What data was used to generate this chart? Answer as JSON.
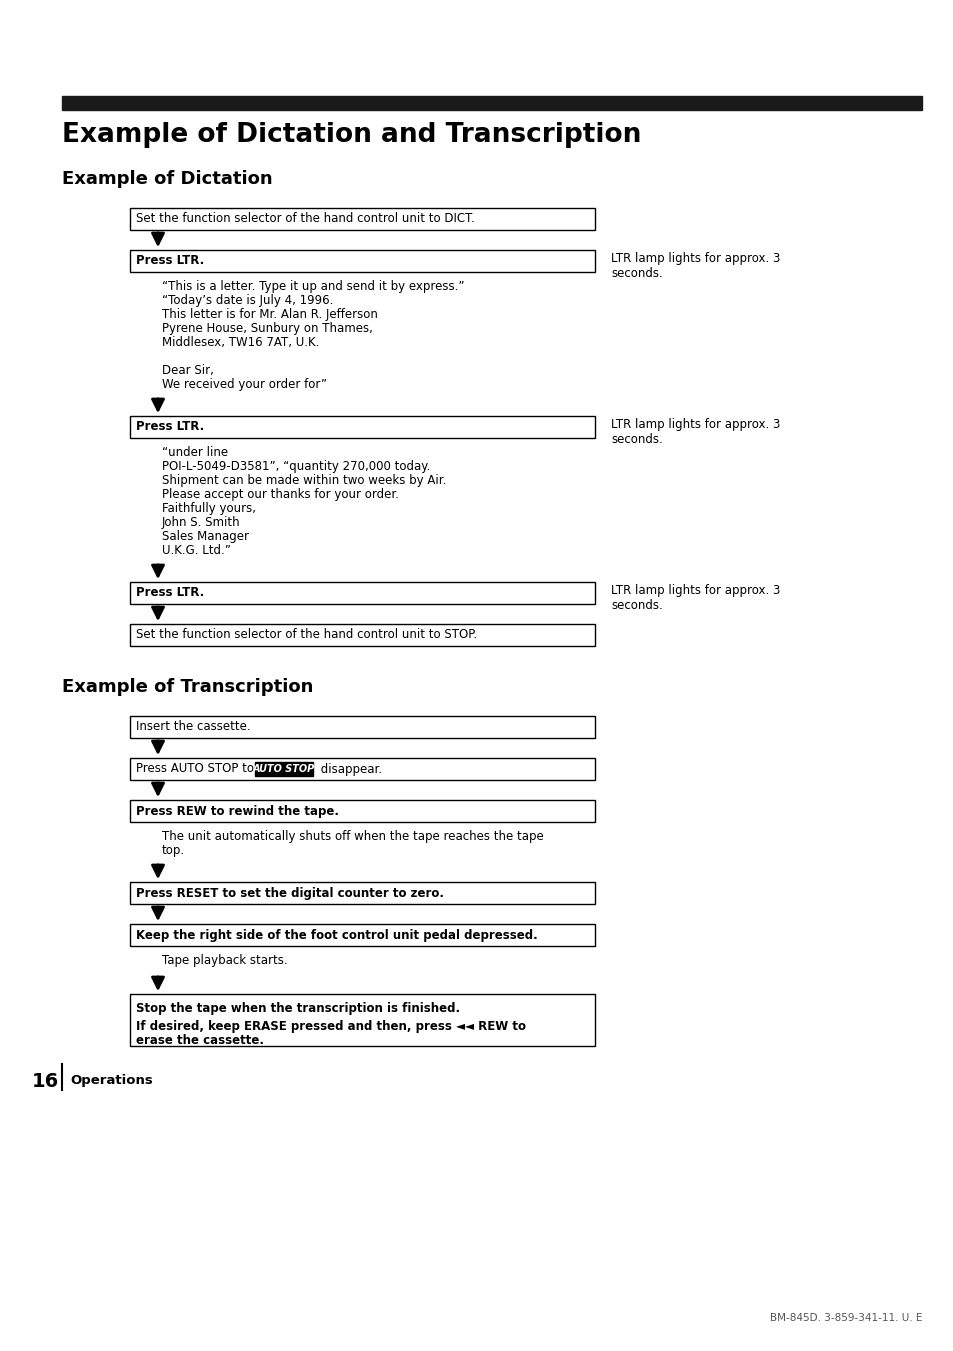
{
  "title": "Example of Dictation and Transcription",
  "subtitle1": "Example of Dictation",
  "subtitle2": "Example of Transcription",
  "bg_color": "#ffffff",
  "header_bar_color": "#1a1a1a",
  "page_num": "16",
  "page_label": "Operations",
  "footer": "BM-845D. 3-859-341-11. U. E",
  "dict_text1": [
    "“This is a letter. Type it up and send it by express.”",
    "“Today’s date is July 4, 1996.",
    "This letter is for Mr. Alan R. Jefferson",
    "Pyrene House, Sunbury on Thames,",
    "Middlesex, TW16 7AT, U.K.",
    "",
    "Dear Sir,",
    "We received your order for”"
  ],
  "dict_text2": [
    "“under line",
    "POI-L-5049-D3581”, “quantity 270,000 today.",
    "Shipment can be made within two weeks by Air.",
    "Please accept our thanks for your order.",
    "Faithfully yours,",
    "John S. Smith",
    "Sales Manager",
    "U.K.G. Ltd.”"
  ],
  "ltr_note": "LTR lamp lights for approx. 3\nseconds.",
  "trans_text1_lines": [
    "The unit automatically shuts off when the tape reaches the tape",
    "top."
  ],
  "trans_text2": "Tape playback starts.",
  "trans_last_box_line1": "Stop the tape when the transcription is finished.",
  "trans_last_box_line2a": "If desired, keep ERASE pressed and then, press ◄◄ REW to",
  "trans_last_box_line2b": "erase the cassette."
}
